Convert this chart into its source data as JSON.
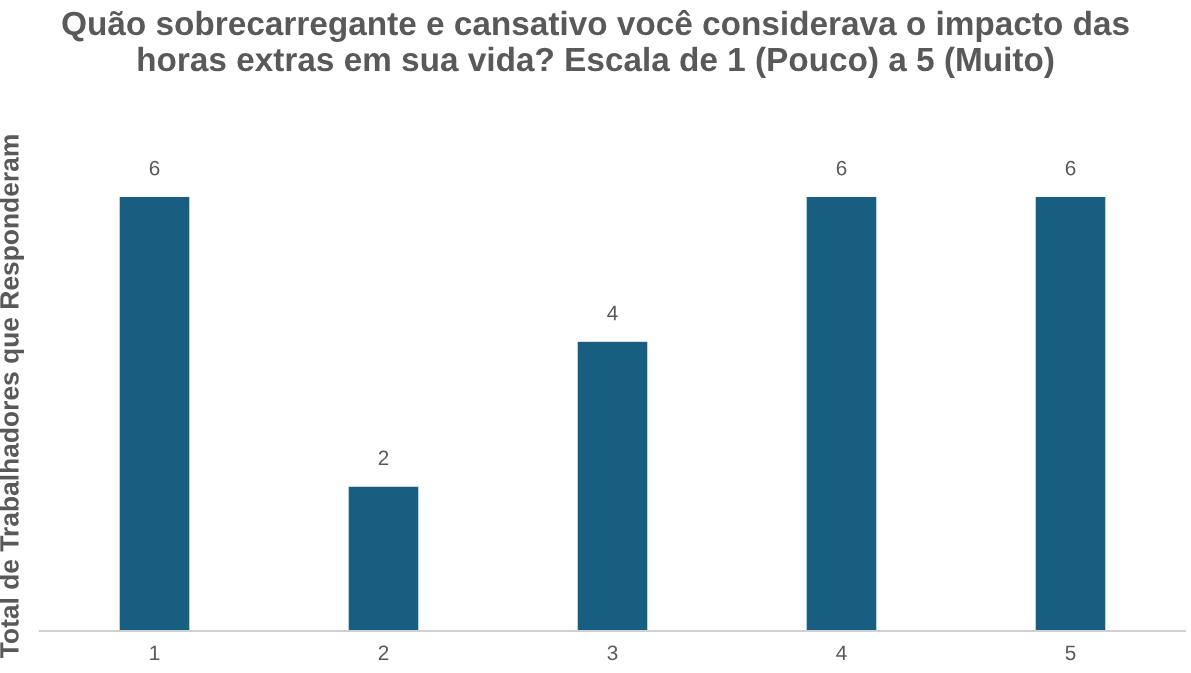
{
  "chart_data": {
    "type": "bar",
    "title": "Quão sobrecarregante e cansativo você considerava o impacto das\nhoras extras em sua vida? Escala de 1 (Pouco) a 5 (Muito)",
    "ylabel": "Total de Trabalhadores que Responderam",
    "categories": [
      "1",
      "2",
      "3",
      "4",
      "5"
    ],
    "values": [
      6,
      2,
      4,
      6,
      6
    ],
    "color": "#175e80",
    "data_labels": true,
    "grid": false,
    "legend": false,
    "tick_labels": "x"
  }
}
